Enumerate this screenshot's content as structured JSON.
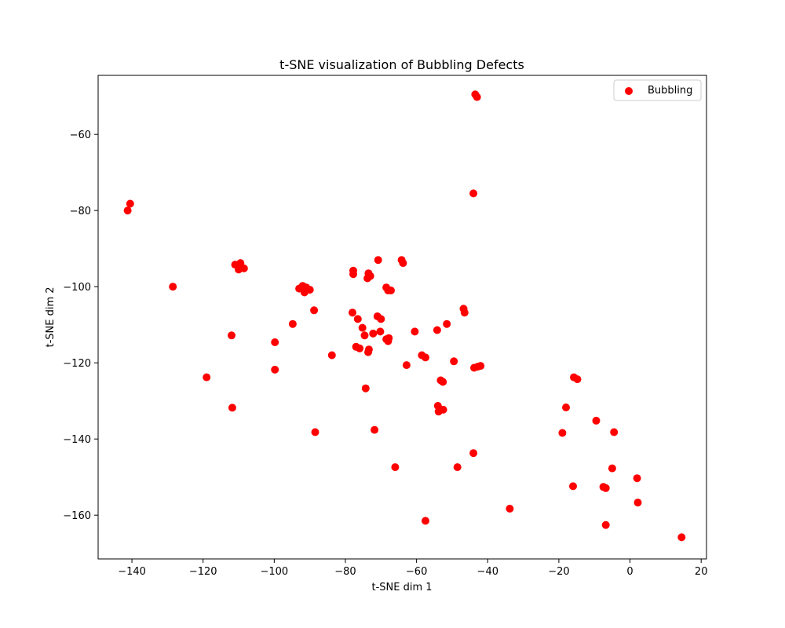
{
  "chart_data": {
    "type": "scatter",
    "title": "t-SNE visualization of Bubbling Defects",
    "xlabel": "t-SNE dim 1",
    "ylabel": "t-SNE dim 2",
    "xlim": [
      -149.5,
      21.5
    ],
    "ylim": [
      -171.5,
      -44.5
    ],
    "xticks": [
      -140,
      -120,
      -100,
      -80,
      -60,
      -40,
      -20,
      0,
      20
    ],
    "yticks": [
      -60,
      -80,
      -100,
      -120,
      -140,
      -160
    ],
    "grid": false,
    "legend_position": "top-right",
    "series": [
      {
        "name": "Bubbling",
        "color": "#ff0000",
        "points": [
          [
            -43.5,
            -49.5
          ],
          [
            -43.0,
            -50.2
          ],
          [
            -44.0,
            -75.5
          ],
          [
            -141.2,
            -80.0
          ],
          [
            -140.5,
            -78.2
          ],
          [
            -128.5,
            -100.0
          ],
          [
            -111.0,
            -94.2
          ],
          [
            -110.0,
            -95.5
          ],
          [
            -109.5,
            -93.8
          ],
          [
            -108.5,
            -95.2
          ],
          [
            -112.0,
            -112.8
          ],
          [
            -119.0,
            -123.8
          ],
          [
            -111.8,
            -131.8
          ],
          [
            -99.8,
            -114.6
          ],
          [
            -99.8,
            -121.8
          ],
          [
            -94.8,
            -109.8
          ],
          [
            -93.0,
            -100.5
          ],
          [
            -92.0,
            -99.8
          ],
          [
            -91.5,
            -101.5
          ],
          [
            -91.0,
            -100.2
          ],
          [
            -90.0,
            -100.8
          ],
          [
            -88.8,
            -106.2
          ],
          [
            -88.5,
            -138.2
          ],
          [
            -83.8,
            -118.0
          ],
          [
            -77.8,
            -95.8
          ],
          [
            -77.8,
            -96.7
          ],
          [
            -78.0,
            -106.8
          ],
          [
            -76.5,
            -108.5
          ],
          [
            -77.0,
            -115.8
          ],
          [
            -76.0,
            -116.2
          ],
          [
            -75.2,
            -110.8
          ],
          [
            -74.6,
            -112.8
          ],
          [
            -73.5,
            -96.5
          ],
          [
            -73.8,
            -97.8
          ],
          [
            -73.0,
            -97.2
          ],
          [
            -73.4,
            -116.5
          ],
          [
            -73.6,
            -117.2
          ],
          [
            -72.2,
            -112.3
          ],
          [
            -74.3,
            -126.7
          ],
          [
            -71.8,
            -137.6
          ],
          [
            -70.8,
            -93.0
          ],
          [
            -71.0,
            -107.8
          ],
          [
            -70.0,
            -108.5
          ],
          [
            -70.2,
            -111.8
          ],
          [
            -68.5,
            -100.2
          ],
          [
            -68.0,
            -101.0
          ],
          [
            -67.2,
            -101.0
          ],
          [
            -68.5,
            -113.8
          ],
          [
            -68.0,
            -114.3
          ],
          [
            -67.8,
            -113.5
          ],
          [
            -66.0,
            -147.4
          ],
          [
            -64.2,
            -93.0
          ],
          [
            -63.8,
            -93.8
          ],
          [
            -62.8,
            -120.6
          ],
          [
            -60.5,
            -111.8
          ],
          [
            -58.5,
            -118.0
          ],
          [
            -57.5,
            -118.6
          ],
          [
            -57.5,
            -161.5
          ],
          [
            -54.2,
            -111.4
          ],
          [
            -54.0,
            -131.3
          ],
          [
            -53.8,
            -132.8
          ],
          [
            -53.2,
            -132.3
          ],
          [
            -52.5,
            -132.3
          ],
          [
            -53.2,
            -124.6
          ],
          [
            -52.6,
            -125.0
          ],
          [
            -51.5,
            -109.8
          ],
          [
            -49.5,
            -119.6
          ],
          [
            -48.5,
            -147.4
          ],
          [
            -46.8,
            -105.8
          ],
          [
            -46.5,
            -106.8
          ],
          [
            -44.0,
            -143.7
          ],
          [
            -43.8,
            -121.3
          ],
          [
            -42.8,
            -121.0
          ],
          [
            -42.0,
            -120.8
          ],
          [
            -33.8,
            -158.3
          ],
          [
            -19.0,
            -138.4
          ],
          [
            -18.0,
            -131.7
          ],
          [
            -16.0,
            -152.4
          ],
          [
            -15.8,
            -123.8
          ],
          [
            -14.8,
            -124.3
          ],
          [
            -9.5,
            -135.2
          ],
          [
            -7.5,
            -152.6
          ],
          [
            -6.8,
            -152.9
          ],
          [
            -6.8,
            -162.6
          ],
          [
            -5.0,
            -147.7
          ],
          [
            -4.5,
            -138.2
          ],
          [
            2.0,
            -150.3
          ],
          [
            2.2,
            -156.7
          ],
          [
            14.5,
            -165.8
          ]
        ]
      }
    ]
  }
}
